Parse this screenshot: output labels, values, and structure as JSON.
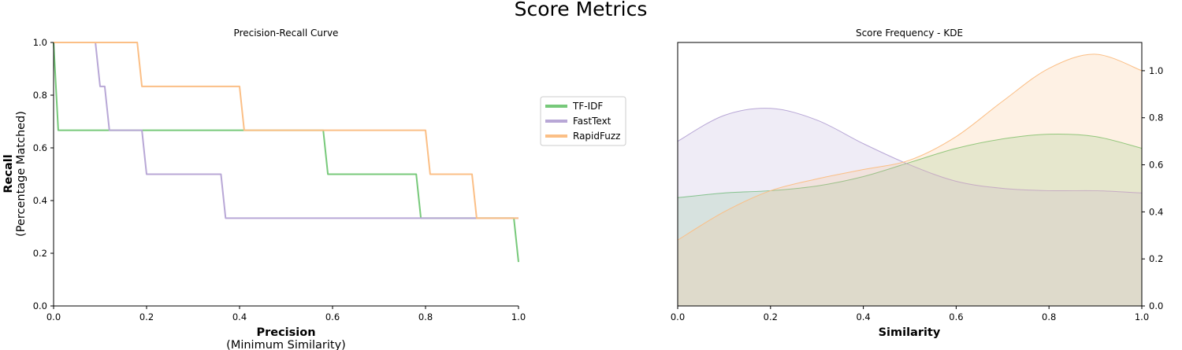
{
  "figure_title": "Score Metrics",
  "legend": {
    "entries": [
      {
        "label": "TF-IDF",
        "color": "#77c97a"
      },
      {
        "label": "FastText",
        "color": "#b8a7d6"
      },
      {
        "label": "RapidFuzz",
        "color": "#fbbf86"
      }
    ]
  },
  "chart_data": [
    {
      "type": "line",
      "title": "Precision-Recall Curve",
      "xlabel": "Precision",
      "xlabel_sub": "(Minimum Similarity)",
      "ylabel": "Recall",
      "ylabel_sub": "(Percentage Matched)",
      "xlim": [
        0,
        1
      ],
      "ylim": [
        0,
        1
      ],
      "xticks": [
        "0.0",
        "0.2",
        "0.4",
        "0.6",
        "0.8",
        "1.0"
      ],
      "yticks": [
        "0.0",
        "0.2",
        "0.4",
        "0.6",
        "0.8",
        "1.0"
      ],
      "grid": false,
      "series": [
        {
          "name": "TF-IDF",
          "color": "#77c97a",
          "x": [
            0.0,
            0.01,
            0.58,
            0.59,
            0.78,
            0.79,
            0.99,
            1.0
          ],
          "y": [
            1.0,
            0.667,
            0.667,
            0.5,
            0.5,
            0.333,
            0.333,
            0.167
          ]
        },
        {
          "name": "FastText",
          "color": "#b8a7d6",
          "x": [
            0.09,
            0.1,
            0.11,
            0.12,
            0.19,
            0.2,
            0.36,
            0.37,
            1.0
          ],
          "y": [
            1.0,
            0.833,
            0.833,
            0.667,
            0.667,
            0.5,
            0.5,
            0.333,
            0.333
          ]
        },
        {
          "name": "RapidFuzz",
          "color": "#fbbf86",
          "x": [
            0.0,
            0.18,
            0.19,
            0.4,
            0.41,
            0.8,
            0.81,
            0.9,
            0.91,
            1.0
          ],
          "y": [
            1.0,
            1.0,
            0.833,
            0.833,
            0.667,
            0.667,
            0.5,
            0.5,
            0.333,
            0.333
          ]
        }
      ]
    },
    {
      "type": "area",
      "title": "Score Frequency - KDE",
      "xlabel": "Similarity",
      "ylabel": "",
      "xlim": [
        0,
        1
      ],
      "ylim": [
        0,
        1.12
      ],
      "xticks": [
        "0.0",
        "0.2",
        "0.4",
        "0.6",
        "0.8",
        "1.0"
      ],
      "yticks": [
        "0.0",
        "0.2",
        "0.4",
        "0.6",
        "0.8",
        "1.0"
      ],
      "y_axis_side": "right",
      "grid": false,
      "series": [
        {
          "name": "TF-IDF",
          "color": "#77c97a",
          "x": [
            0,
            0.1,
            0.2,
            0.3,
            0.4,
            0.5,
            0.6,
            0.7,
            0.8,
            0.9,
            1.0
          ],
          "y": [
            0.46,
            0.48,
            0.49,
            0.51,
            0.55,
            0.61,
            0.67,
            0.71,
            0.73,
            0.72,
            0.67
          ]
        },
        {
          "name": "FastText",
          "color": "#b8a7d6",
          "x": [
            0,
            0.1,
            0.2,
            0.3,
            0.4,
            0.5,
            0.6,
            0.7,
            0.8,
            0.9,
            1.0
          ],
          "y": [
            0.7,
            0.81,
            0.84,
            0.79,
            0.69,
            0.6,
            0.53,
            0.5,
            0.49,
            0.49,
            0.48
          ]
        },
        {
          "name": "RapidFuzz",
          "color": "#fbbf86",
          "x": [
            0,
            0.1,
            0.2,
            0.3,
            0.4,
            0.5,
            0.6,
            0.7,
            0.8,
            0.9,
            1.0
          ],
          "y": [
            0.28,
            0.4,
            0.49,
            0.54,
            0.58,
            0.62,
            0.72,
            0.87,
            1.01,
            1.07,
            1.0
          ]
        }
      ]
    }
  ]
}
